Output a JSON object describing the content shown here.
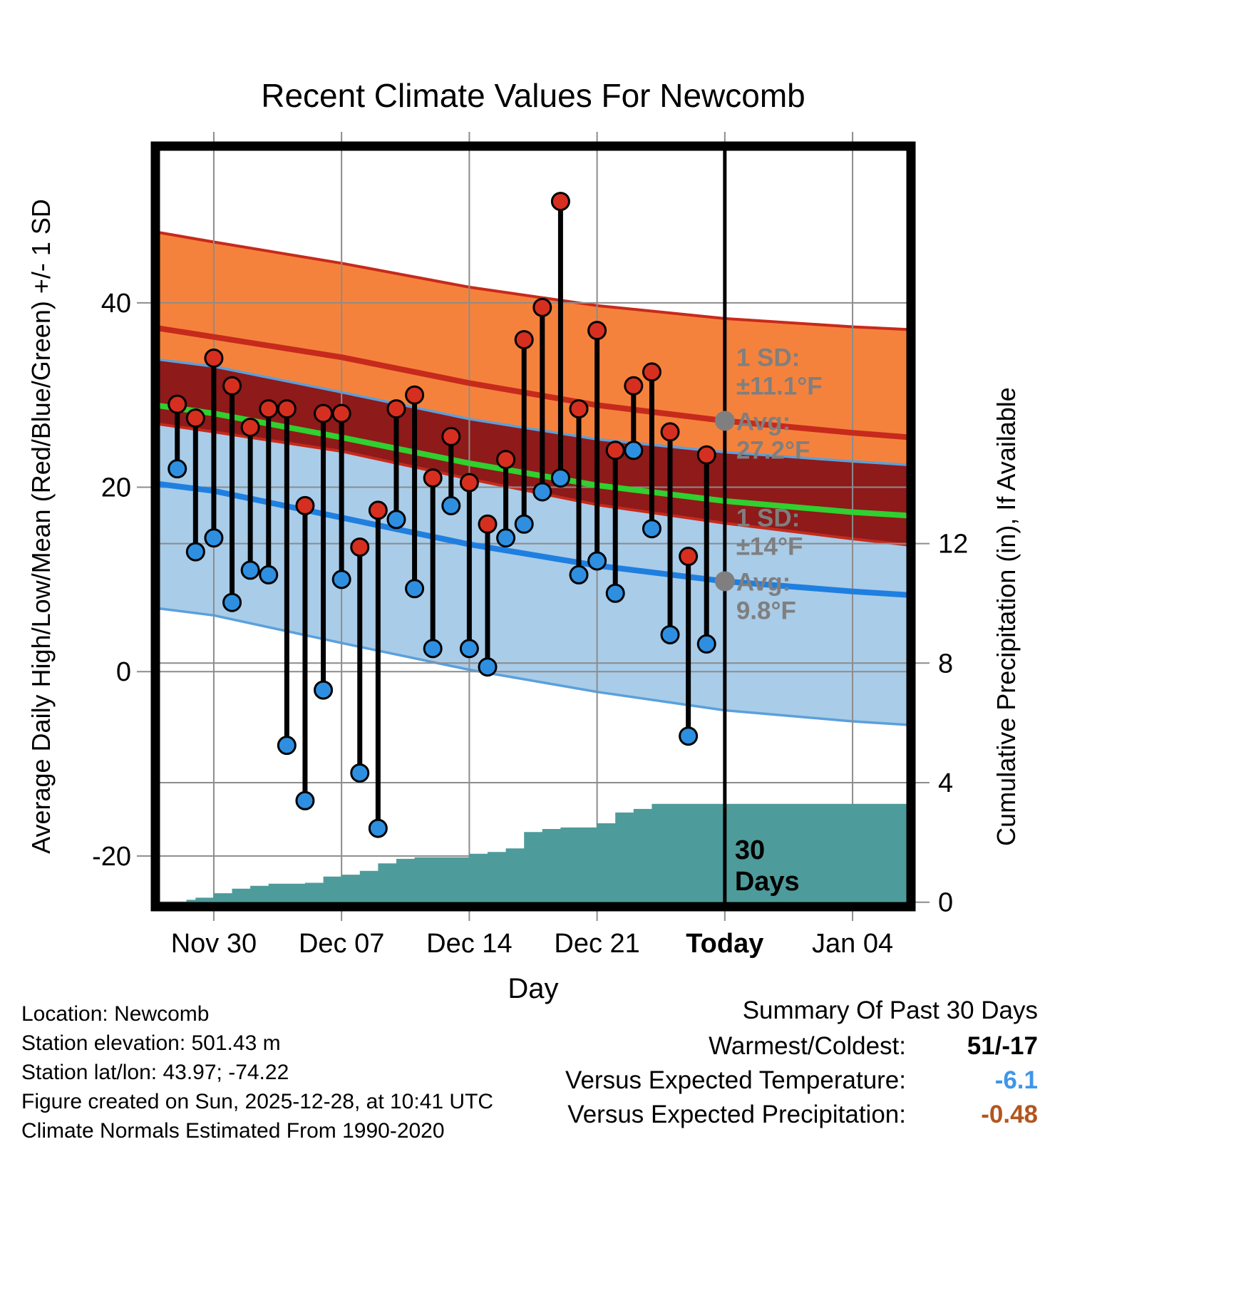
{
  "title": "Recent Climate Values For Newcomb",
  "colors": {
    "orange_band": "#F5823C",
    "dark_red_band": "#8E1A1A",
    "blue_band": "#A9CCE8",
    "blue_band_edge": "#5AA0DC",
    "red_line": "#C62A1C",
    "blue_line": "#1F7FE0",
    "green_line": "#2FD02F",
    "dot_red": "#D62F20",
    "dot_blue": "#2E8FE0",
    "teal": "#4E9B9B",
    "gray_annotation": "#7F7F7F",
    "grid": "#8C8C8C",
    "frame": "#000000",
    "summary_temp": "#3F96E8",
    "summary_precip": "#B2561F"
  },
  "chart_data": {
    "type": "line",
    "title": "Recent Climate Values For Newcomb",
    "xlabel": "Day",
    "ylabel_left": "Average Daily High/Low/Mean (Red/Blue/Green) +/- 1 SD",
    "ylabel_right": "Cumulative Precipitation (in), If Available",
    "x_domain_days": [
      -3.2,
      38.2
    ],
    "x_ticks": [
      {
        "day": 0,
        "label": "Nov 30",
        "bold": false
      },
      {
        "day": 7,
        "label": "Dec 07",
        "bold": false
      },
      {
        "day": 14,
        "label": "Dec 14",
        "bold": false
      },
      {
        "day": 21,
        "label": "Dec 21",
        "bold": false
      },
      {
        "day": 28,
        "label": "Today",
        "bold": true
      },
      {
        "day": 35,
        "label": "Jan 04",
        "bold": false
      }
    ],
    "temp_ylim": [
      -25.5,
      57
    ],
    "temp_ticks": [
      -20,
      0,
      20,
      40
    ],
    "precip_ylim": [
      -0.15,
      25.3
    ],
    "precip_ticks": [
      0,
      4,
      8,
      12
    ],
    "today_day": 28,
    "normals": {
      "days": [
        -3.2,
        0,
        7,
        14,
        21,
        28,
        35,
        38.2
      ],
      "avg_high": [
        37.3,
        36.3,
        34.1,
        31.3,
        28.9,
        27.2,
        25.9,
        25.4
      ],
      "avg_low": [
        20.4,
        19.6,
        16.7,
        13.8,
        11.5,
        9.8,
        8.7,
        8.3
      ],
      "mean": [
        28.9,
        28.0,
        25.4,
        22.6,
        20.2,
        18.5,
        17.3,
        16.9
      ],
      "high_upper": [
        47.7,
        46.6,
        44.3,
        41.7,
        39.7,
        38.3,
        37.4,
        37.1
      ],
      "high_lower": [
        26.9,
        26.0,
        23.9,
        20.9,
        18.1,
        16.1,
        14.4,
        13.7
      ],
      "low_upper": [
        33.9,
        33.1,
        30.3,
        27.4,
        25.2,
        23.8,
        22.8,
        22.4
      ],
      "low_lower": [
        6.9,
        6.1,
        3.1,
        0.2,
        -2.2,
        -4.2,
        -5.4,
        -5.8
      ]
    },
    "daily": {
      "labels": [
        "Nov 28",
        "Nov 29",
        "Nov 30",
        "Dec 01",
        "Dec 02",
        "Dec 03",
        "Dec 04",
        "Dec 05",
        "Dec 06",
        "Dec 07",
        "Dec 08",
        "Dec 09",
        "Dec 10",
        "Dec 11",
        "Dec 12",
        "Dec 13",
        "Dec 14",
        "Dec 15",
        "Dec 16",
        "Dec 17",
        "Dec 18",
        "Dec 19",
        "Dec 20",
        "Dec 21",
        "Dec 22",
        "Dec 23",
        "Dec 24",
        "Dec 25",
        "Dec 26",
        "Dec 27"
      ],
      "days": [
        -2,
        -1,
        0,
        1,
        2,
        3,
        4,
        5,
        6,
        7,
        8,
        9,
        10,
        11,
        12,
        13,
        14,
        15,
        16,
        17,
        18,
        19,
        20,
        21,
        22,
        23,
        24,
        25,
        26,
        27
      ],
      "high": [
        29,
        27.5,
        34,
        31,
        26.5,
        28.5,
        28.5,
        18,
        28,
        28,
        13.5,
        17.5,
        28.5,
        30,
        21,
        25.5,
        20.5,
        16,
        23,
        36,
        39.5,
        51,
        28.5,
        37,
        24,
        31,
        32.5,
        26,
        12.5,
        23.5
      ],
      "low": [
        22,
        13,
        14.5,
        7.5,
        11,
        10.5,
        -8,
        -14,
        -2,
        10,
        -11,
        -17,
        16.5,
        9,
        2.5,
        18,
        2.5,
        0.5,
        14.5,
        16,
        19.5,
        21,
        10.5,
        12,
        8.5,
        24,
        15.5,
        4,
        -7,
        3
      ]
    },
    "precip_steps": {
      "days": [
        -1.5,
        -1,
        0,
        1,
        2,
        3,
        5,
        6,
        7,
        8,
        9,
        10,
        11,
        14,
        15,
        16,
        17,
        18,
        19,
        21,
        22,
        23,
        24,
        38.2
      ],
      "cumulative_in": [
        0.08,
        0.15,
        0.3,
        0.45,
        0.55,
        0.62,
        0.65,
        0.86,
        0.92,
        1.05,
        1.3,
        1.45,
        1.5,
        1.62,
        1.68,
        1.8,
        2.35,
        2.45,
        2.5,
        2.64,
        3.0,
        3.12,
        3.29,
        3.29
      ]
    }
  },
  "annotations": {
    "high": {
      "sd_line1": "1 SD:",
      "sd_line2": "±11.1°F",
      "avg_line1": "Avg:",
      "avg_line2": "27.2°F",
      "avg_value": 27.2,
      "sd_value": 11.1
    },
    "low": {
      "sd_line1": "1 SD:",
      "sd_line2": "±14°F",
      "avg_line1": "Avg:",
      "avg_line2": "9.8°F",
      "avg_value": 9.8,
      "sd_value": 14
    },
    "today_label_line1": "30",
    "today_label_line2": "Days"
  },
  "footer": {
    "lines": [
      "Location: Newcomb",
      "Station elevation: 501.43 m",
      "Station lat/lon: 43.97; -74.22",
      "Figure created on Sun, 2025-12-28, at 10:41 UTC",
      "Climate Normals Estimated From 1990-2020"
    ]
  },
  "summary": {
    "title": "Summary Of Past 30 Days",
    "rows": [
      {
        "label": "Warmest/Coldest:",
        "value": "51/-17",
        "color": "black"
      },
      {
        "label": "Versus Expected Temperature:",
        "value": "-6.1",
        "color": "blue"
      },
      {
        "label": "Versus Expected Precipitation:",
        "value": "-0.48",
        "color": "orange"
      }
    ]
  }
}
